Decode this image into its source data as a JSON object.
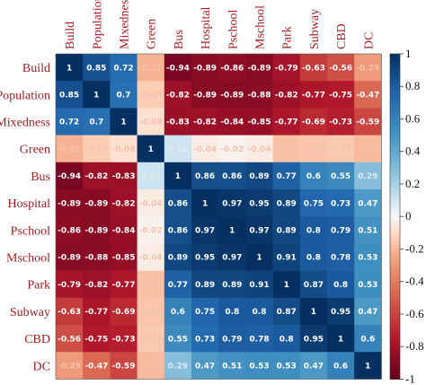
{
  "chart_data": {
    "type": "heatmap",
    "title": "",
    "xlabel": "",
    "ylabel": "",
    "variables": [
      "Build",
      "Population",
      "Mixedness",
      "Green",
      "Bus",
      "Hospital",
      "Pschool",
      "Mschool",
      "Park",
      "Subway",
      "CBD",
      "DC"
    ],
    "matrix": [
      [
        1,
        0.85,
        0.72,
        -0.21,
        -0.94,
        -0.89,
        -0.86,
        -0.89,
        -0.79,
        -0.63,
        -0.56,
        -0.29
      ],
      [
        0.85,
        1,
        0.7,
        -0.14,
        -0.82,
        -0.89,
        -0.89,
        -0.88,
        -0.82,
        -0.77,
        -0.75,
        -0.47
      ],
      [
        0.72,
        0.7,
        1,
        -0.08,
        -0.83,
        -0.82,
        -0.84,
        -0.85,
        -0.77,
        -0.69,
        -0.73,
        -0.59
      ],
      [
        -0.21,
        -0.14,
        -0.08,
        1,
        0.11,
        -0.04,
        -0.02,
        -0.04,
        -0.17,
        -0.16,
        -0.15,
        -0.19
      ],
      [
        -0.94,
        -0.82,
        -0.83,
        0.11,
        1,
        0.86,
        0.86,
        0.89,
        0.77,
        0.6,
        0.55,
        0.29
      ],
      [
        -0.89,
        -0.89,
        -0.82,
        -0.04,
        0.86,
        1,
        0.97,
        0.95,
        0.89,
        0.75,
        0.73,
        0.47
      ],
      [
        -0.86,
        -0.89,
        -0.84,
        -0.02,
        0.86,
        0.97,
        1,
        0.97,
        0.89,
        0.8,
        0.79,
        0.51
      ],
      [
        -0.89,
        -0.88,
        -0.85,
        -0.04,
        0.89,
        0.95,
        0.97,
        1,
        0.91,
        0.8,
        0.78,
        0.53
      ],
      [
        -0.79,
        -0.82,
        -0.77,
        -0.17,
        0.77,
        0.89,
        0.89,
        0.91,
        1,
        0.87,
        0.8,
        0.53
      ],
      [
        -0.63,
        -0.77,
        -0.69,
        -0.16,
        0.6,
        0.75,
        0.8,
        0.8,
        0.87,
        1,
        0.95,
        0.47
      ],
      [
        -0.56,
        -0.75,
        -0.73,
        -0.15,
        0.55,
        0.73,
        0.79,
        0.78,
        0.8,
        0.95,
        1,
        0.6
      ],
      [
        -0.29,
        -0.47,
        -0.59,
        -0.19,
        0.29,
        0.47,
        0.51,
        0.53,
        0.53,
        0.47,
        0.6,
        1
      ]
    ],
    "colorbar": {
      "range": [
        -1,
        1
      ],
      "ticks": [
        "1",
        "0.8",
        "0.6",
        "0.4",
        "0.2",
        "0",
        "-0.2",
        "-0.4",
        "-0.6",
        "-0.8",
        "-1"
      ],
      "colors": {
        "negative": "#67001f",
        "neutral": "#f7f7f7",
        "positive": "#053061"
      }
    },
    "label_color": "#a31e24"
  }
}
